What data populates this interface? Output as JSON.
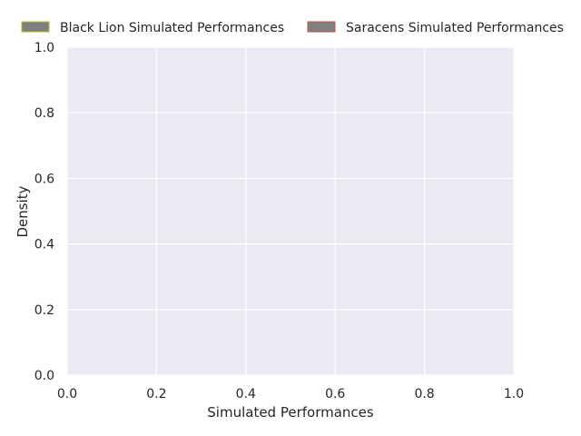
{
  "chart_data": {
    "type": "area",
    "title": "",
    "xlabel": "Simulated Performances",
    "ylabel": "Density",
    "xlim": [
      0.0,
      1.0
    ],
    "ylim": [
      0.0,
      1.0
    ],
    "xticks": [
      "0.0",
      "0.2",
      "0.4",
      "0.6",
      "0.8",
      "1.0"
    ],
    "yticks": [
      "0.0",
      "0.2",
      "0.4",
      "0.6",
      "0.8",
      "1.0"
    ],
    "grid": true,
    "legend_placement": "top",
    "series": [
      {
        "name": "Black Lion Simulated Performances",
        "fill": "#808080",
        "edge": "#b5b82e",
        "values": []
      },
      {
        "name": "Saracens Simulated Performances",
        "fill": "#808080",
        "edge": "#c0504d",
        "values": []
      }
    ],
    "colors": {
      "plot_background": "#eaeaf2",
      "grid": "#ffffff",
      "text": "#262626"
    }
  }
}
